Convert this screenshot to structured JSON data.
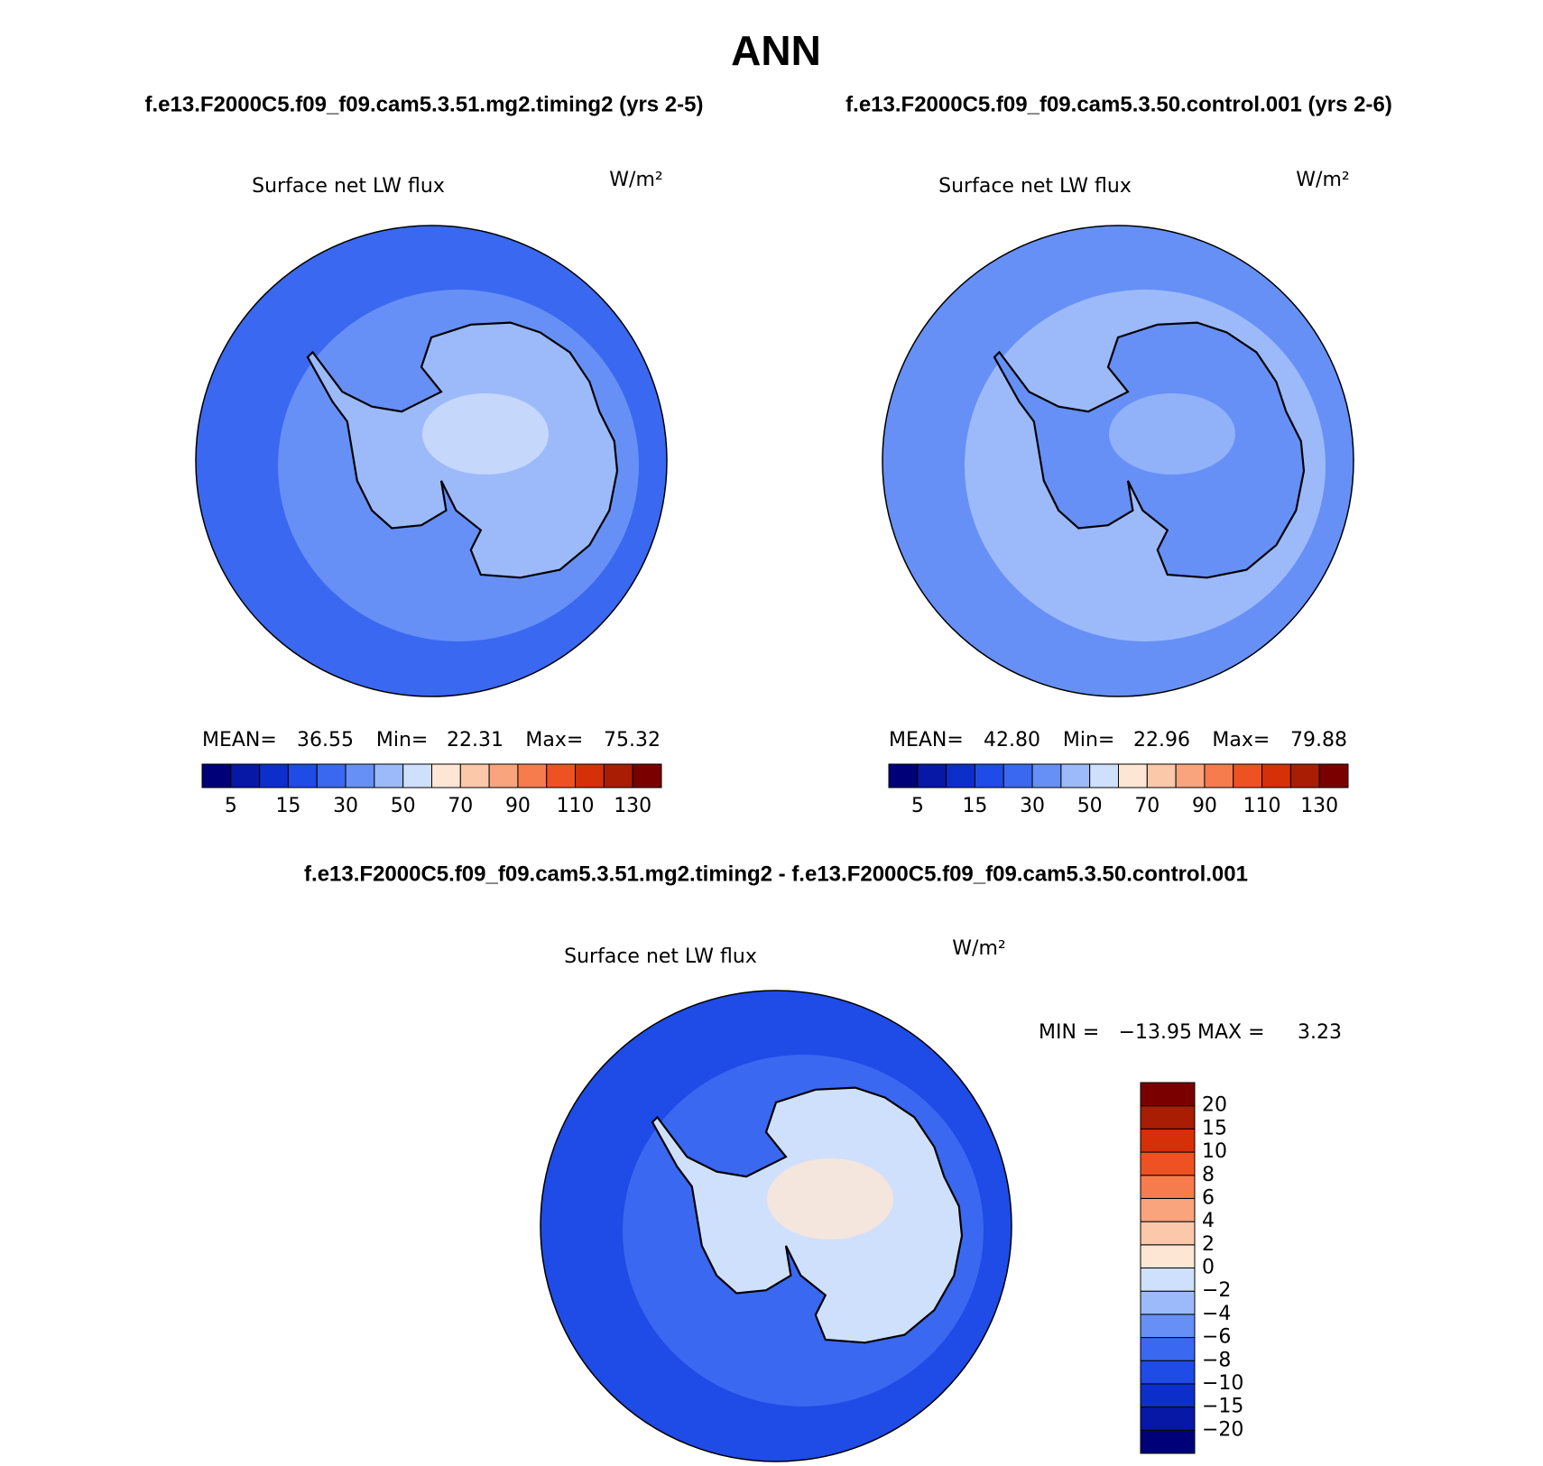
{
  "header": {
    "title": "ANN",
    "case1": "f.e13.F2000C5.f09_f09.cam5.3.51.mg2.timing2 (yrs 2-5)",
    "case2": "f.e13.F2000C5.f09_f09.cam5.3.50.control.001 (yrs 2-6)",
    "diff_title": "f.e13.F2000C5.f09_f09.cam5.3.51.mg2.timing2 - f.e13.F2000C5.f09_f09.cam5.3.50.control.001"
  },
  "palette": [
    "#000078",
    "#0718a6",
    "#0c2fcc",
    "#1f4be6",
    "#3a68f0",
    "#6690f6",
    "#9cbafa",
    "#cfe0fc",
    "#fde6d4",
    "#fcc8aa",
    "#f9a47c",
    "#f67c4e",
    "#ef5222",
    "#d53008",
    "#a81d03",
    "#7a0000"
  ],
  "panels": [
    {
      "title": "Surface net LW flux",
      "units": "W/m²",
      "stats": [
        {
          "label": "MEAN=",
          "value": "36.55"
        },
        {
          "label": "Min=",
          "value": "22.31"
        },
        {
          "label": "Max=",
          "value": "75.32"
        }
      ],
      "colorbar_labels": [
        "5",
        "15",
        "30",
        "50",
        "70",
        "90",
        "110",
        "130"
      ]
    },
    {
      "title": "Surface net LW flux",
      "units": "W/m²",
      "stats": [
        {
          "label": "MEAN=",
          "value": "42.80"
        },
        {
          "label": "Min=",
          "value": "22.96"
        },
        {
          "label": "Max=",
          "value": "79.88"
        }
      ],
      "colorbar_labels": [
        "5",
        "15",
        "30",
        "50",
        "70",
        "90",
        "110",
        "130"
      ]
    },
    {
      "title": "Surface net LW flux",
      "units": "W/m²",
      "stats": [
        {
          "label": "MIN =",
          "value": "−13.95"
        },
        {
          "label": "MAX =",
          "value": "3.23"
        }
      ],
      "colorbar_labels": [
        "20",
        "15",
        "10",
        "8",
        "6",
        "4",
        "2",
        "0",
        "−2",
        "−4",
        "−6",
        "−8",
        "−10",
        "−15",
        "−20"
      ]
    }
  ]
}
